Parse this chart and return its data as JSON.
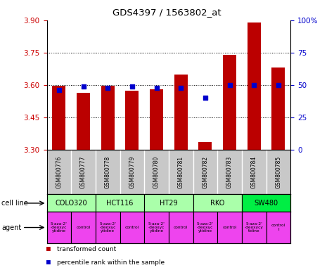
{
  "title": "GDS4397 / 1563802_at",
  "samples": [
    "GSM800776",
    "GSM800777",
    "GSM800778",
    "GSM800779",
    "GSM800780",
    "GSM800781",
    "GSM800782",
    "GSM800783",
    "GSM800784",
    "GSM800785"
  ],
  "red_values": [
    3.595,
    3.565,
    3.595,
    3.575,
    3.58,
    3.65,
    3.335,
    3.74,
    3.89,
    3.68
  ],
  "blue_values": [
    46,
    49,
    48,
    49,
    48,
    48,
    40,
    50,
    50,
    50
  ],
  "ylim_left": [
    3.3,
    3.9
  ],
  "ylim_right": [
    0,
    100
  ],
  "yticks_left": [
    3.3,
    3.45,
    3.6,
    3.75,
    3.9
  ],
  "yticks_right": [
    0,
    25,
    50,
    75,
    100
  ],
  "ytick_labels_right": [
    "0",
    "25",
    "50",
    "75",
    "100%"
  ],
  "cell_lines": [
    {
      "label": "COLO320",
      "start": 0,
      "end": 2,
      "color": "#AAFFAA"
    },
    {
      "label": "HCT116",
      "start": 2,
      "end": 4,
      "color": "#AAFFAA"
    },
    {
      "label": "HT29",
      "start": 4,
      "end": 6,
      "color": "#AAFFAA"
    },
    {
      "label": "RKO",
      "start": 6,
      "end": 8,
      "color": "#AAFFAA"
    },
    {
      "label": "SW480",
      "start": 8,
      "end": 10,
      "color": "#00EE44"
    }
  ],
  "agents": [
    {
      "label": "5-aza-2'\n-deoxyc\nytidine",
      "start": 0,
      "end": 1
    },
    {
      "label": "control",
      "start": 1,
      "end": 2
    },
    {
      "label": "5-aza-2'\n-deoxyc\nytidine",
      "start": 2,
      "end": 3
    },
    {
      "label": "control",
      "start": 3,
      "end": 4
    },
    {
      "label": "5-aza-2'\n-deoxyc\nytidine",
      "start": 4,
      "end": 5
    },
    {
      "label": "control",
      "start": 5,
      "end": 6
    },
    {
      "label": "5-aza-2'\n-deoxyc\nytidine",
      "start": 6,
      "end": 7
    },
    {
      "label": "control",
      "start": 7,
      "end": 8
    },
    {
      "label": "5-aza-2'\n-deoxycy\ntidine",
      "start": 8,
      "end": 9
    },
    {
      "label": "control\nl",
      "start": 9,
      "end": 10
    }
  ],
  "agent_color": "#EE44EE",
  "bar_color": "#BB0000",
  "dot_color": "#0000CC",
  "sample_bg_color": "#C8C8C8",
  "left_tick_color": "#CC0000",
  "right_tick_color": "#0000CC",
  "legend_red": "transformed count",
  "legend_blue": "percentile rank within the sample"
}
